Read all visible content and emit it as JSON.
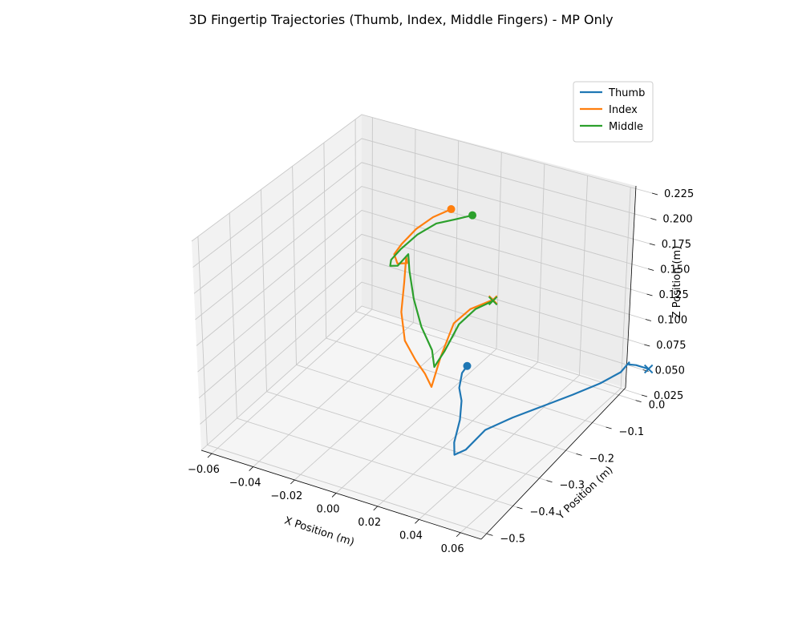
{
  "chart_data": {
    "type": "line",
    "projection": "3d",
    "title": "3D Fingertip Trajectories (Thumb, Index, Middle Fingers) - MP Only",
    "xlabel": "X Position (m)",
    "ylabel": "Y Position (m)",
    "zlabel": "Z Position (m)",
    "xlim": [
      -0.065,
      0.07
    ],
    "ylim": [
      -0.52,
      0.02
    ],
    "zlim": [
      0.025,
      0.225
    ],
    "x_ticks": [
      -0.06,
      -0.04,
      -0.02,
      0.0,
      0.02,
      0.04,
      0.06
    ],
    "x_tick_labels": [
      "−0.06",
      "−0.04",
      "−0.02",
      "0.00",
      "0.02",
      "0.04",
      "0.06"
    ],
    "y_ticks": [
      -0.5,
      -0.4,
      -0.3,
      -0.2,
      -0.1,
      0.0
    ],
    "y_tick_labels": [
      "−0.5",
      "−0.4",
      "−0.3",
      "−0.2",
      "−0.1",
      "0.0"
    ],
    "z_ticks": [
      0.025,
      0.05,
      0.075,
      0.1,
      0.125,
      0.15,
      0.175,
      0.2,
      0.225
    ],
    "z_tick_labels": [
      "0.025",
      "0.050",
      "0.075",
      "0.100",
      "0.125",
      "0.150",
      "0.175",
      "0.200",
      "0.225"
    ],
    "grid": true,
    "legend_position": "top-right",
    "start_marker": "circle",
    "end_marker": "x",
    "series": [
      {
        "name": "Thumb",
        "color": "#1f77b4",
        "x": [
          0.01,
          0.009,
          0.012,
          0.016,
          0.021,
          0.024,
          0.027,
          0.031,
          0.036,
          0.042,
          0.048,
          0.055,
          0.061,
          0.065,
          0.066,
          0.066,
          0.068,
          0.074
        ],
        "y": [
          -0.15,
          -0.16,
          -0.19,
          -0.21,
          -0.25,
          -0.29,
          -0.31,
          -0.3,
          -0.27,
          -0.22,
          -0.17,
          -0.11,
          -0.06,
          -0.02,
          0.0,
          0.0,
          0.01,
          0.01
        ],
        "z": [
          0.06,
          0.055,
          0.05,
          0.045,
          0.04,
          0.03,
          0.025,
          0.03,
          0.045,
          0.048,
          0.049,
          0.05,
          0.052,
          0.055,
          0.06,
          0.058,
          0.056,
          0.056
        ]
      },
      {
        "name": "Index",
        "color": "#ff7f0e",
        "x": [
          -0.02,
          -0.027,
          -0.032,
          -0.036,
          -0.038,
          -0.035,
          -0.029,
          -0.028,
          -0.026,
          -0.023,
          -0.017,
          -0.009,
          -0.003,
          0.003,
          0.003,
          0.002,
          0.004,
          0.009
        ],
        "y": [
          0.0,
          -0.01,
          -0.03,
          -0.05,
          -0.06,
          -0.07,
          -0.08,
          -0.09,
          -0.11,
          -0.14,
          -0.17,
          -0.19,
          -0.2,
          -0.22,
          -0.19,
          -0.14,
          -0.1,
          -0.06
        ],
        "z": [
          0.16,
          0.15,
          0.14,
          0.127,
          0.118,
          0.113,
          0.12,
          0.13,
          0.11,
          0.09,
          0.073,
          0.064,
          0.057,
          0.053,
          0.075,
          0.095,
          0.1,
          0.102
        ]
      },
      {
        "name": "Middle",
        "color": "#2ca02c",
        "x": [
          -0.01,
          -0.016,
          -0.024,
          -0.03,
          -0.035,
          -0.038,
          -0.037,
          -0.032,
          -0.027,
          -0.025,
          -0.02,
          -0.012,
          -0.004,
          0.0,
          0.002,
          0.003,
          0.005,
          0.009
        ],
        "y": [
          0.0,
          -0.01,
          -0.02,
          -0.04,
          -0.06,
          -0.07,
          -0.08,
          -0.09,
          -0.09,
          -0.1,
          -0.12,
          -0.15,
          -0.17,
          -0.19,
          -0.17,
          -0.13,
          -0.09,
          -0.06
        ],
        "z": [
          0.16,
          0.155,
          0.148,
          0.138,
          0.125,
          0.115,
          0.112,
          0.118,
          0.133,
          0.12,
          0.1,
          0.085,
          0.072,
          0.063,
          0.075,
          0.092,
          0.098,
          0.101
        ]
      }
    ]
  }
}
